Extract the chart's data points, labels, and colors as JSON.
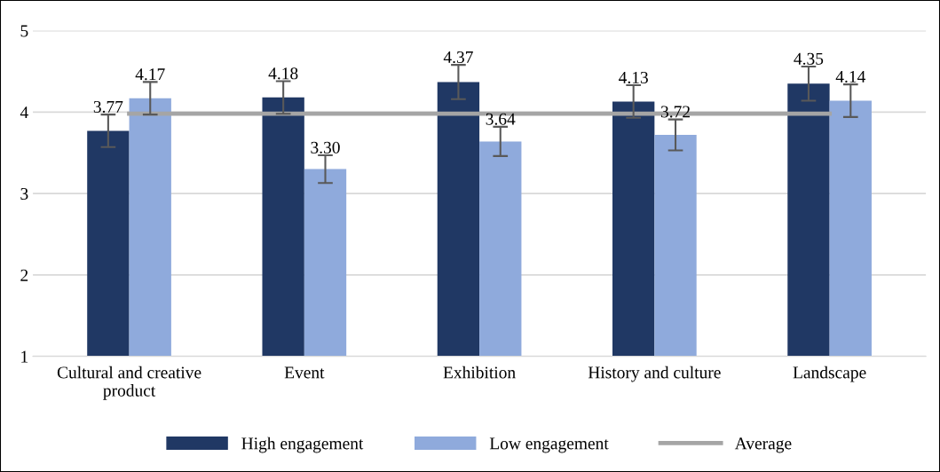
{
  "chart_data": {
    "type": "bar",
    "categories": [
      "Cultural and creative product",
      "Event",
      "Exhibition",
      "History and culture",
      "Landscape"
    ],
    "series": [
      {
        "name": "High engagement",
        "color": "#203864",
        "values": [
          3.77,
          4.18,
          4.37,
          4.13,
          4.35
        ],
        "errors": [
          0.2,
          0.2,
          0.21,
          0.2,
          0.21
        ],
        "value_labels": [
          "3.77",
          "4.18",
          "4.37",
          "4.13",
          "4.35"
        ]
      },
      {
        "name": "Low engagement",
        "color": "#8faadc",
        "values": [
          4.17,
          3.3,
          3.64,
          3.72,
          4.14
        ],
        "errors": [
          0.2,
          0.17,
          0.18,
          0.19,
          0.2
        ],
        "value_labels": [
          "4.17",
          "3.30",
          "3.64",
          "3.72",
          "4.14"
        ]
      },
      {
        "name": "Average",
        "type": "line",
        "color": "#a5a5a5",
        "values": [
          3.98,
          3.98,
          3.98,
          3.98,
          3.98
        ]
      }
    ],
    "ylim": [
      1,
      5
    ],
    "yticks": [
      1,
      2,
      3,
      4,
      5
    ],
    "grid": "y",
    "legend": "bottom",
    "marker": "none",
    "line_style": "solid"
  }
}
